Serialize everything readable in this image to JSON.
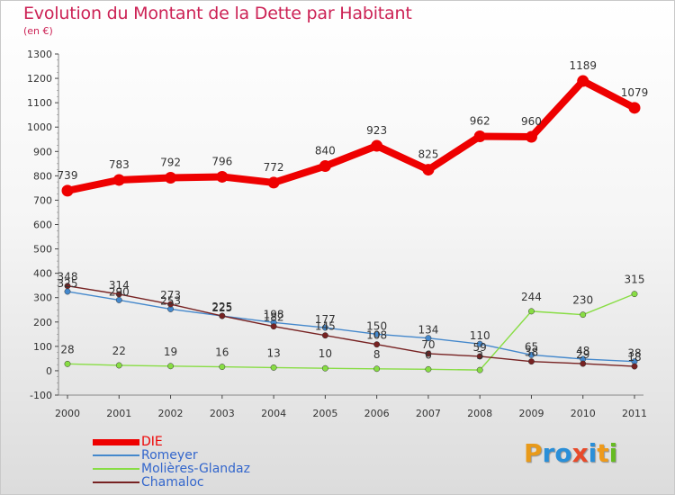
{
  "chart_data": {
    "type": "line",
    "title": "Evolution du Montant de la Dette par Habitant",
    "subtitle": "(en €)",
    "xlabel": "",
    "ylabel": "",
    "ylim": [
      -100,
      1300
    ],
    "yticks": [
      "-100",
      "0",
      "100",
      "200",
      "300",
      "400",
      "500",
      "600",
      "700",
      "800",
      "900",
      "1000",
      "1100",
      "1200",
      "1300"
    ],
    "categories": [
      "2000",
      "2001",
      "2002",
      "2003",
      "2004",
      "2005",
      "2006",
      "2007",
      "2008",
      "2009",
      "2010",
      "2011"
    ],
    "series": [
      {
        "name": "DIE",
        "color": "#ee0000",
        "values": [
          739,
          783,
          792,
          796,
          772,
          840,
          923,
          825,
          962,
          960,
          1189,
          1079
        ]
      },
      {
        "name": "Romeyer",
        "color": "#4488cc",
        "values": [
          325,
          290,
          253,
          225,
          198,
          177,
          150,
          134,
          110,
          65,
          48,
          38
        ]
      },
      {
        "name": "Molières-Glandaz",
        "color": "#88dd44",
        "values": [
          28,
          22,
          19,
          16,
          13,
          10,
          8,
          6,
          3,
          244,
          230,
          315
        ]
      },
      {
        "name": "Chamaloc",
        "color": "#772222",
        "values": [
          348,
          314,
          273,
          225,
          182,
          145,
          108,
          70,
          59,
          38,
          29,
          18
        ]
      }
    ]
  },
  "branding": {
    "logo_letters": [
      "P",
      "r",
      "o",
      "x",
      "i",
      "t",
      "i"
    ],
    "logo_colors": [
      "#e89a1a",
      "#2a8fd8",
      "#2a8fd8",
      "#e84a2a",
      "#2a8fd8",
      "#ee9a1a",
      "#66bb22"
    ]
  }
}
